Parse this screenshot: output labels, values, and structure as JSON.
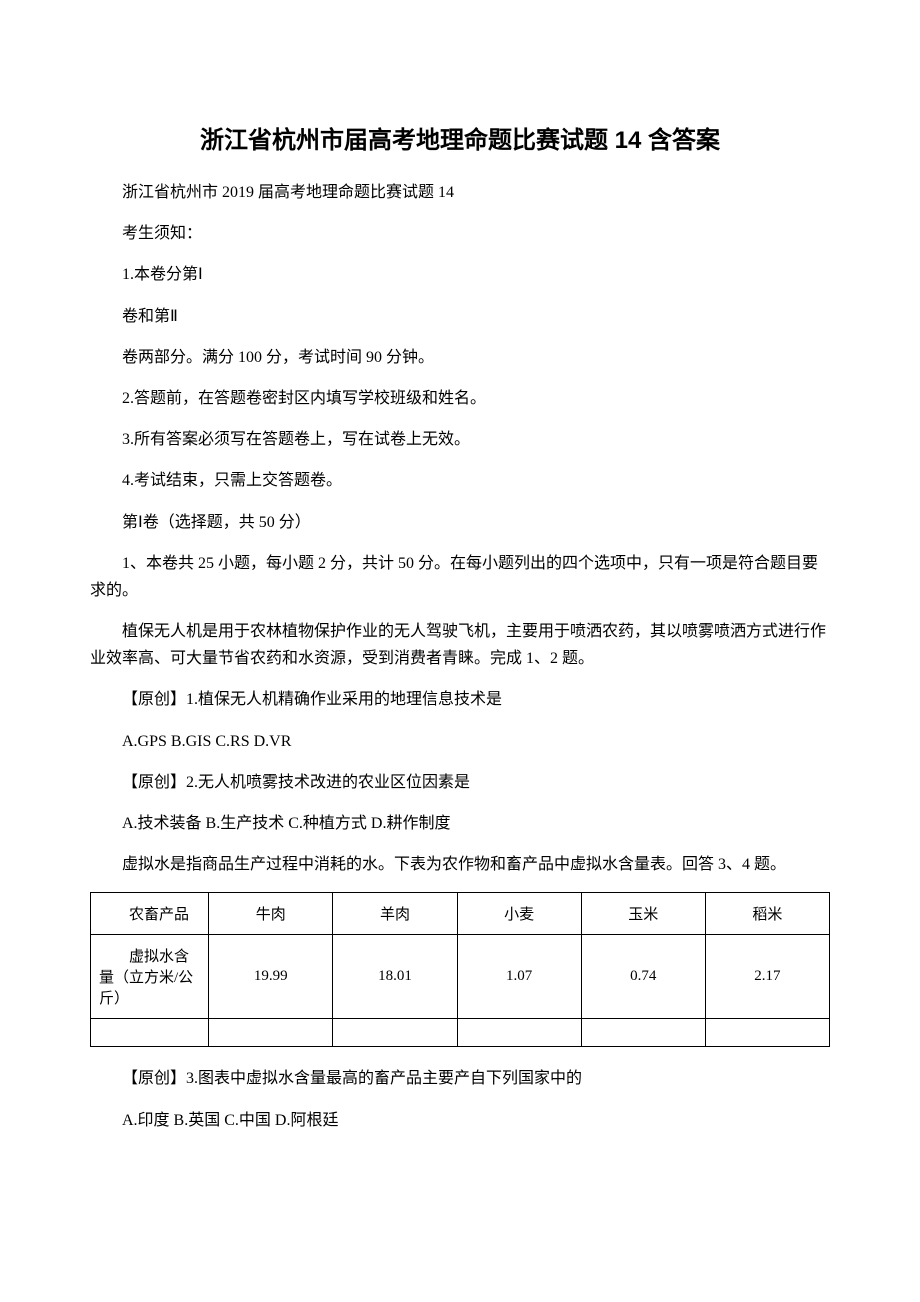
{
  "title": "浙江省杭州市届高考地理命题比赛试题 14 含答案",
  "p1": "浙江省杭州市 2019 届高考地理命题比赛试题 14",
  "p2": "考生须知：",
  "p3": "1.本卷分第Ⅰ",
  "p4": "卷和第Ⅱ",
  "p5": "卷两部分。满分 100 分，考试时间 90 分钟。",
  "p6": "2.答题前，在答题卷密封区内填写学校班级和姓名。",
  "p7": "3.所有答案必须写在答题卷上，写在试卷上无效。",
  "p8": "4.考试结束，只需上交答题卷。",
  "p9": "第Ⅰ卷（选择题，共 50 分）",
  "p10": "1、本卷共 25 小题，每小题 2 分，共计 50 分。在每小题列出的四个选项中，只有一项是符合题目要求的。",
  "p11": "植保无人机是用于农林植物保护作业的无人驾驶飞机，主要用于喷洒农药，其以喷雾喷洒方式进行作业效率高、可大量节省农药和水资源，受到消费者青睐。完成 1、2 题。",
  "p12": "【原创】1.植保无人机精确作业采用的地理信息技术是",
  "p13": "A.GPS   B.GIS C.RS D.VR",
  "p14": "【原创】2.无人机喷雾技术改进的农业区位因素是",
  "p15": " A.技术装备  B.生产技术 C.种植方式 D.耕作制度",
  "p16": "虚拟水是指商品生产过程中消耗的水。下表为农作物和畜产品中虚拟水含量表。回答 3、4 题。",
  "table": {
    "row1_label": "农畜产品",
    "row1_c1": "牛肉",
    "row1_c2": "羊肉",
    "row1_c3": "小麦",
    "row1_c4": "玉米",
    "row1_c5": "稻米",
    "row2_label": "虚拟水含量（立方米/公斤）",
    "row2_c1": "19.99",
    "row2_c2": "18.01",
    "row2_c3": "1.07",
    "row2_c4": "0.74",
    "row2_c5": "2.17"
  },
  "p17": "【原创】3.图表中虚拟水含量最高的畜产品主要产自下列国家中的",
  "p18": "A.印度 B.英国 C.中国 D.阿根廷"
}
